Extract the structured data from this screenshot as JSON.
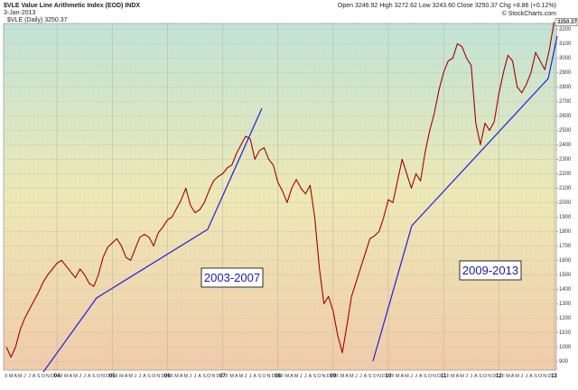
{
  "chart_data": {
    "type": "line",
    "title": "$VLE Value Line Arithmetic Index (EOD) INDX",
    "date": "3-Jan-2013",
    "quote": "Open 3246.92 High 3272.62 Low 3243.60 Close 3250.37 Chg +8.86 (+0.12%)",
    "source": "© StockCharts.com",
    "legend_label": "$VLE (Daily) 3250.37",
    "last_price_label": "3250.37",
    "annotations": [
      "2003-2007",
      "2009-2013"
    ],
    "categories": [
      "F",
      "M",
      "A",
      "M",
      "J",
      "J",
      "A",
      "S",
      "O",
      "N",
      "D",
      "04",
      "F",
      "M",
      "A",
      "M",
      "J",
      "J",
      "A",
      "S",
      "O",
      "N",
      "D",
      "05",
      "F",
      "M",
      "A",
      "M",
      "J",
      "J",
      "A",
      "S",
      "O",
      "N",
      "D",
      "06",
      "F",
      "M",
      "A",
      "M",
      "J",
      "J",
      "A",
      "S",
      "O",
      "N",
      "D",
      "07",
      "F",
      "M",
      "A",
      "M",
      "J",
      "J",
      "A",
      "S",
      "O",
      "N",
      "D",
      "08",
      "F",
      "M",
      "A",
      "M",
      "J",
      "J",
      "A",
      "S",
      "O",
      "N",
      "D",
      "09",
      "F",
      "M",
      "A",
      "M",
      "J",
      "J",
      "A",
      "S",
      "O",
      "N",
      "D",
      "10",
      "F",
      "M",
      "A",
      "M",
      "J",
      "J",
      "A",
      "S",
      "O",
      "N",
      "D",
      "11",
      "F",
      "M",
      "A",
      "M",
      "J",
      "J",
      "A",
      "S",
      "O",
      "N",
      "D",
      "12",
      "F",
      "M",
      "A",
      "M",
      "J",
      "J",
      "A",
      "S",
      "O",
      "N",
      "D",
      "13"
    ],
    "series": [
      {
        "name": "$VLE",
        "color": "#a30000",
        "values": [
          1000,
          930,
          1000,
          1120,
          1200,
          1260,
          1320,
          1380,
          1450,
          1500,
          1540,
          1580,
          1600,
          1560,
          1520,
          1480,
          1540,
          1500,
          1440,
          1420,
          1500,
          1620,
          1690,
          1720,
          1750,
          1700,
          1620,
          1600,
          1680,
          1760,
          1780,
          1760,
          1700,
          1790,
          1830,
          1880,
          1900,
          1960,
          2020,
          2100,
          1980,
          1930,
          1950,
          2000,
          2080,
          2150,
          2180,
          2200,
          2240,
          2260,
          2340,
          2400,
          2460,
          2440,
          2300,
          2360,
          2380,
          2300,
          2260,
          2140,
          2080,
          2000,
          2100,
          2160,
          2100,
          2060,
          2120,
          1900,
          1550,
          1300,
          1350,
          1250,
          1080,
          960,
          1150,
          1350,
          1450,
          1550,
          1650,
          1750,
          1770,
          1800,
          1900,
          2020,
          2000,
          2150,
          2300,
          2200,
          2100,
          2200,
          2150,
          2350,
          2500,
          2620,
          2780,
          2900,
          2980,
          3000,
          3100,
          3080,
          3000,
          2950,
          2550,
          2400,
          2550,
          2500,
          2560,
          2750,
          2900,
          3020,
          2980,
          2800,
          2760,
          2820,
          2900,
          3040,
          2980,
          2920,
          3060,
          3250
        ]
      }
    ],
    "ylim": [
      840,
      3240
    ],
    "yticks": [
      900,
      1000,
      1100,
      1200,
      1300,
      1400,
      1500,
      1600,
      1700,
      1800,
      1900,
      2000,
      2100,
      2200,
      2300,
      2400,
      2500,
      2600,
      2700,
      2800,
      2900,
      3000,
      3100,
      3200
    ],
    "grid": true
  }
}
